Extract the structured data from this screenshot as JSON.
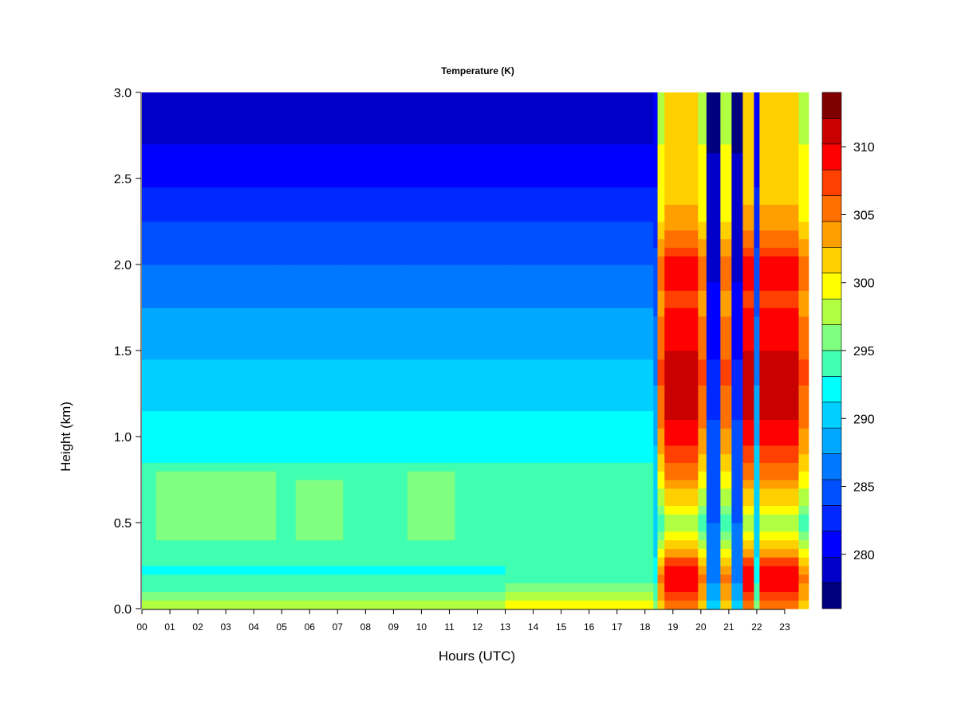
{
  "chart_data": {
    "type": "heatmap",
    "title": "Temperature (K)",
    "xlabel": "Hours (UTC)",
    "ylabel": "Height (km)",
    "xlim": [
      0,
      24
    ],
    "ylim": [
      0,
      3
    ],
    "x_ticks": [
      {
        "value": 0,
        "label": "00"
      },
      {
        "value": 1,
        "label": "01"
      },
      {
        "value": 2,
        "label": "02"
      },
      {
        "value": 3,
        "label": "03"
      },
      {
        "value": 4,
        "label": "04"
      },
      {
        "value": 5,
        "label": "05"
      },
      {
        "value": 6,
        "label": "06"
      },
      {
        "value": 7,
        "label": "07"
      },
      {
        "value": 8,
        "label": "08"
      },
      {
        "value": 9,
        "label": "09"
      },
      {
        "value": 10,
        "label": "10"
      },
      {
        "value": 11,
        "label": "11"
      },
      {
        "value": 12,
        "label": "12"
      },
      {
        "value": 13,
        "label": "13"
      },
      {
        "value": 14,
        "label": "14"
      },
      {
        "value": 15,
        "label": "15"
      },
      {
        "value": 16,
        "label": "16"
      },
      {
        "value": 17,
        "label": "17"
      },
      {
        "value": 18,
        "label": "18"
      },
      {
        "value": 19,
        "label": "19"
      },
      {
        "value": 20,
        "label": "20"
      },
      {
        "value": 21,
        "label": "21"
      },
      {
        "value": 22,
        "label": "22"
      },
      {
        "value": 23,
        "label": "23"
      }
    ],
    "y_ticks": [
      {
        "value": 0.0,
        "label": "0.0"
      },
      {
        "value": 0.5,
        "label": "0.5"
      },
      {
        "value": 1.0,
        "label": "1.0"
      },
      {
        "value": 1.5,
        "label": "1.5"
      },
      {
        "value": 2.0,
        "label": "2.0"
      },
      {
        "value": 2.5,
        "label": "2.5"
      },
      {
        "value": 3.0,
        "label": "3.0"
      }
    ],
    "colorbar": {
      "range": [
        276,
        314
      ],
      "ticks": [
        {
          "value": 280,
          "label": "280"
        },
        {
          "value": 285,
          "label": "285"
        },
        {
          "value": 290,
          "label": "290"
        },
        {
          "value": 295,
          "label": "295"
        },
        {
          "value": 300,
          "label": "300"
        },
        {
          "value": 305,
          "label": "305"
        },
        {
          "value": 310,
          "label": "310"
        }
      ],
      "colors": [
        "#00007f",
        "#0000c8",
        "#0000ff",
        "#0028ff",
        "#0050ff",
        "#0078ff",
        "#00a8ff",
        "#00d0ff",
        "#00ffff",
        "#40ffb0",
        "#80ff80",
        "#b0ff40",
        "#ffff00",
        "#ffd000",
        "#ffa000",
        "#ff7000",
        "#ff4000",
        "#ff0000",
        "#c80000",
        "#800000"
      ]
    },
    "profiles": {
      "heights_km": [
        0.0,
        0.05,
        0.1,
        0.2,
        0.4,
        0.5,
        0.6,
        0.8,
        1.0,
        1.2,
        1.4,
        1.6,
        1.8,
        2.0,
        2.2,
        2.4,
        2.6,
        2.8,
        3.0
      ],
      "quiet": [
        299,
        296.5,
        294,
        293,
        293.5,
        295,
        294.5,
        293.5,
        292,
        291,
        289.5,
        288.5,
        287,
        285.5,
        284,
        282,
        280.5,
        279,
        278
      ],
      "warm_surface": [
        301.5,
        299.5,
        296.5,
        293.5,
        293.5,
        294.5,
        294.5,
        293.5,
        292,
        291,
        289.5,
        288.5,
        287,
        285.5,
        284,
        282,
        280.5,
        279,
        278
      ],
      "hot": [
        304,
        305,
        308,
        310.5,
        300,
        298,
        301,
        305,
        309,
        311,
        311.5,
        309,
        308,
        310,
        304,
        302,
        301.5,
        301,
        301
      ],
      "mid": [
        302,
        302,
        304,
        305,
        296,
        294,
        297,
        301,
        304,
        306,
        307,
        305,
        304,
        306,
        301,
        299.5,
        299,
        298.5,
        298.5
      ],
      "cool": [
        296,
        295.5,
        294,
        292.5,
        290,
        289.5,
        290,
        290,
        289,
        288,
        287,
        286,
        285,
        284,
        283,
        282,
        281,
        280.5,
        280
      ],
      "cold": [
        291,
        289,
        288,
        287,
        286,
        285.5,
        285,
        284.5,
        284,
        283,
        282,
        281,
        280,
        279.5,
        279,
        278.5,
        278,
        277.5,
        277
      ]
    },
    "time_segments": [
      {
        "start": 0,
        "end": 0.5,
        "profile": "quiet"
      },
      {
        "start": 0.5,
        "end": 4.8,
        "profile": "quiet",
        "offset_low": 1.5
      },
      {
        "start": 4.8,
        "end": 5.5,
        "profile": "quiet"
      },
      {
        "start": 5.5,
        "end": 7.2,
        "profile": "quiet",
        "offset_low": 1.2
      },
      {
        "start": 7.2,
        "end": 9.5,
        "profile": "quiet"
      },
      {
        "start": 9.5,
        "end": 11.2,
        "profile": "quiet",
        "offset_low": 1.5
      },
      {
        "start": 11.2,
        "end": 13.0,
        "profile": "quiet"
      },
      {
        "start": 13.0,
        "end": 18.3,
        "profile": "warm_surface"
      },
      {
        "start": 18.3,
        "end": 18.45,
        "profile": "cool"
      },
      {
        "start": 18.45,
        "end": 18.7,
        "profile": "mid"
      },
      {
        "start": 18.7,
        "end": 19.9,
        "profile": "hot"
      },
      {
        "start": 19.9,
        "end": 20.2,
        "profile": "mid"
      },
      {
        "start": 20.2,
        "end": 20.7,
        "profile": "cold"
      },
      {
        "start": 20.7,
        "end": 21.1,
        "profile": "mid"
      },
      {
        "start": 21.1,
        "end": 21.5,
        "profile": "cold"
      },
      {
        "start": 21.5,
        "end": 21.9,
        "profile": "hot"
      },
      {
        "start": 21.9,
        "end": 22.1,
        "profile": "cool"
      },
      {
        "start": 22.1,
        "end": 23.5,
        "profile": "hot"
      },
      {
        "start": 23.5,
        "end": 23.85,
        "profile": "mid"
      }
    ]
  }
}
